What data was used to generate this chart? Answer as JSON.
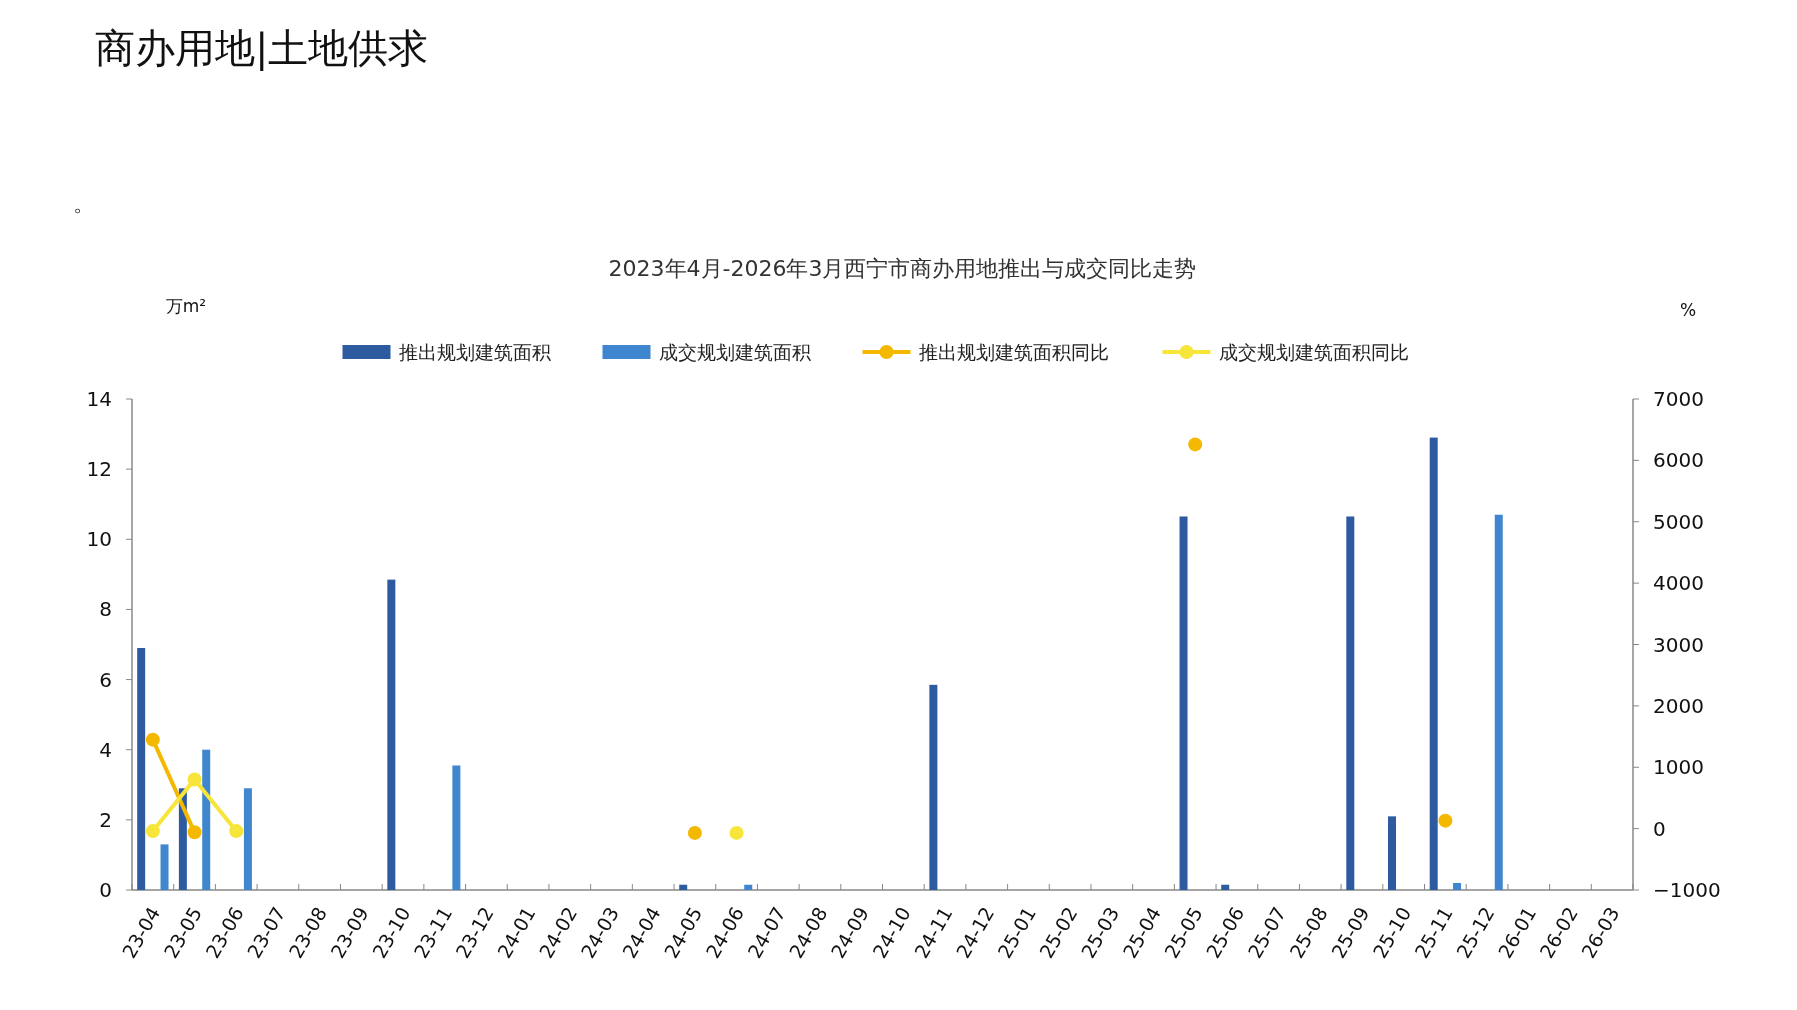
{
  "chart_data": {
    "type": "bar",
    "title": "商办用地|土地供求",
    "subtitle": "2023年4月-2026年3月西宁市商办用地推出与成交同比走势",
    "annotations": [
      "。"
    ],
    "ylabel": "万m²",
    "y2label": "%",
    "categories": [
      "23-04",
      "23-05",
      "23-06",
      "23-07",
      "23-08",
      "23-09",
      "23-10",
      "23-11",
      "23-12",
      "24-01",
      "24-02",
      "24-03",
      "24-04",
      "24-05",
      "24-06",
      "24-07",
      "24-08",
      "24-09",
      "24-10",
      "24-11",
      "24-12",
      "25-01",
      "25-02",
      "25-03",
      "25-04",
      "25-05",
      "25-06",
      "25-07",
      "25-08",
      "25-09",
      "25-10",
      "25-11",
      "25-12",
      "26-01",
      "26-02",
      "26-03"
    ],
    "series": [
      {
        "name": "推出规划建筑面积",
        "color": "#2e5aa0",
        "values": [
          6.9,
          2.9,
          0,
          0,
          0,
          0,
          8.85,
          0,
          0,
          0,
          0,
          0,
          0,
          0.15,
          0,
          0,
          0,
          0,
          0,
          5.85,
          0,
          0,
          0,
          0,
          0,
          10.65,
          0.15,
          0,
          0,
          10.65,
          2.1,
          12.9,
          0,
          0,
          0,
          0
        ]
      },
      {
        "name": "成交规划建筑面积",
        "color": "#3f86cf",
        "values": [
          1.3,
          4.0,
          2.9,
          0,
          0,
          0,
          0,
          3.55,
          0,
          0,
          0,
          0,
          0,
          0,
          0.15,
          0,
          0,
          0,
          0,
          0,
          0,
          0,
          0,
          0,
          0,
          0,
          0,
          0,
          0,
          0,
          0,
          0.2,
          10.7,
          0,
          0,
          0
        ]
      },
      {
        "name": "推出规划建筑面积同比",
        "type": "line",
        "axis": "y2",
        "color": "#f5b800",
        "values": [
          1450,
          -60,
          null,
          null,
          null,
          null,
          null,
          null,
          null,
          null,
          null,
          null,
          null,
          -70,
          null,
          null,
          null,
          null,
          null,
          null,
          null,
          null,
          null,
          null,
          null,
          6260,
          null,
          null,
          null,
          null,
          null,
          130,
          null,
          null,
          null,
          null
        ]
      },
      {
        "name": "成交规划建筑面积同比",
        "type": "line",
        "axis": "y2",
        "color": "#f7e53a",
        "values": [
          -40,
          800,
          -40,
          null,
          null,
          null,
          null,
          null,
          null,
          null,
          null,
          null,
          null,
          null,
          -70,
          null,
          null,
          null,
          null,
          null,
          null,
          null,
          null,
          null,
          null,
          null,
          null,
          null,
          null,
          null,
          null,
          null,
          null,
          null,
          null,
          null
        ]
      }
    ],
    "ylim": [
      0,
      14
    ],
    "yticks": [
      0,
      2,
      4,
      6,
      8,
      10,
      12,
      14
    ],
    "y2lim": [
      -1000,
      7000
    ],
    "y2ticks": [
      -1000,
      0,
      1000,
      2000,
      3000,
      4000,
      5000,
      6000,
      7000
    ],
    "marker": "circle",
    "legend": "top"
  }
}
